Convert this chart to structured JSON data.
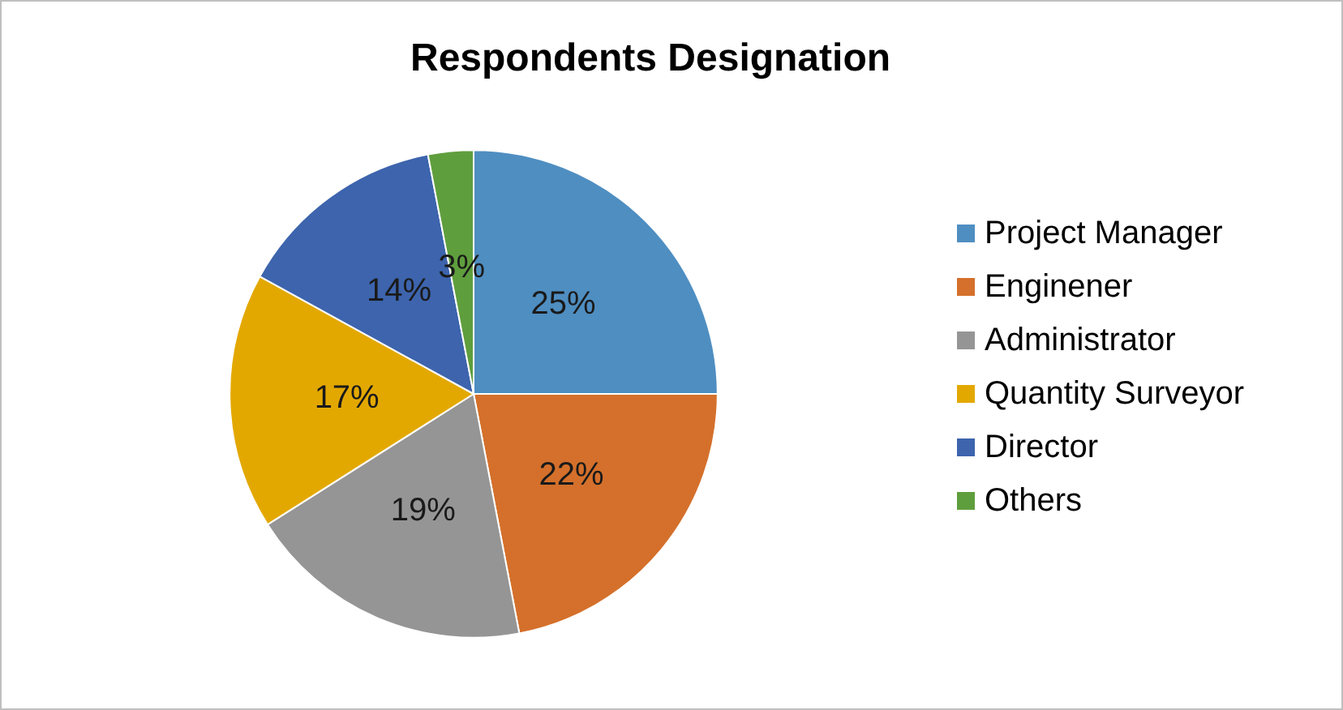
{
  "chart_data": {
    "type": "pie",
    "title": "Respondents Designation",
    "categories": [
      "Project Manager",
      "Enginener",
      "Administrator",
      "Quantity Surveyor",
      "Director",
      "Others"
    ],
    "values": [
      25,
      22,
      19,
      17,
      14,
      3
    ],
    "value_labels": [
      "25%",
      "22%",
      "19%",
      "17%",
      "14%",
      "3%"
    ],
    "colors": [
      "#4f8ec1",
      "#d4702b",
      "#959595",
      "#e3a800",
      "#3d64ad",
      "#5f9e3d"
    ],
    "legend": "right"
  }
}
